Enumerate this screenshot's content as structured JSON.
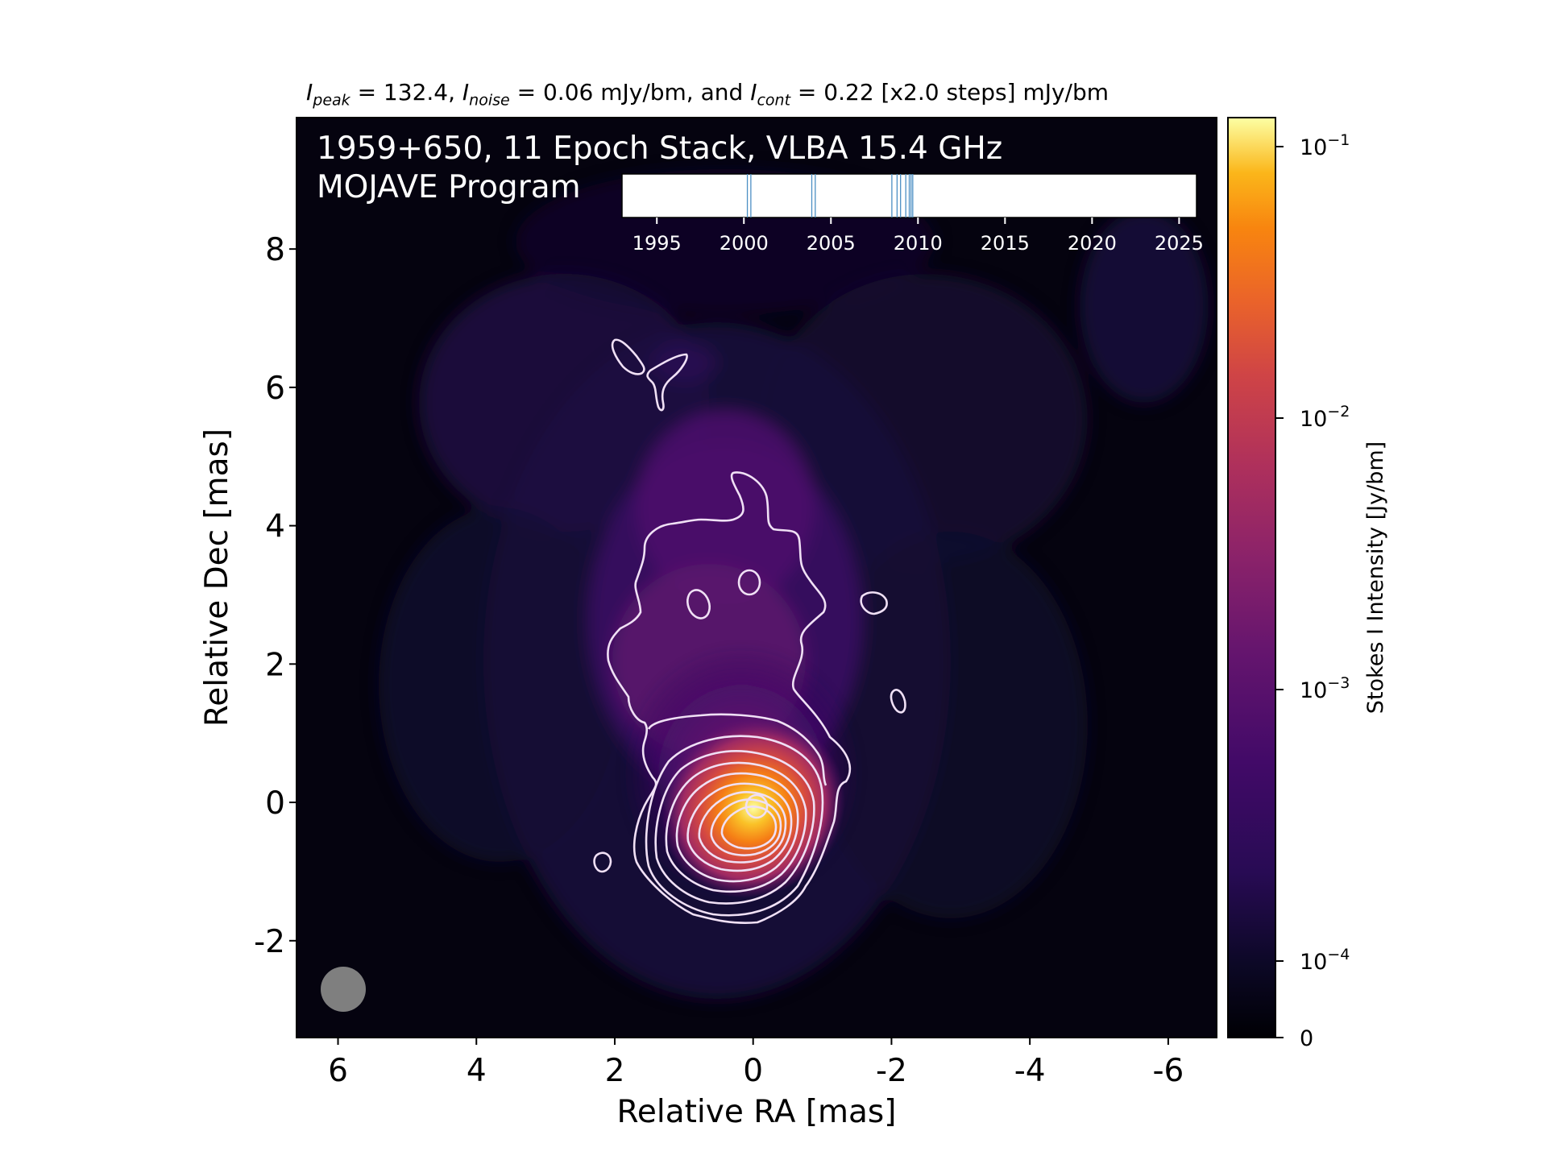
{
  "header": {
    "peak_sym": "I",
    "peak_sub": "peak",
    "peak_text": " = 132.4, ",
    "noise_sym": "I",
    "noise_sub": "noise",
    "noise_text": " = 0.06 mJy/bm, and ",
    "cont_sym": "I",
    "cont_sub": "cont",
    "cont_text": " = 0.22 [x2.0 steps] mJy/bm"
  },
  "overlay": {
    "title_line1": "1959+650, 11 Epoch Stack, VLBA 15.4 GHz",
    "title_line2": "MOJAVE Program"
  },
  "chart_data": [
    {
      "type": "heatmap",
      "title": "",
      "xlabel": "Relative RA [mas]",
      "ylabel": "Relative Dec [mas]",
      "xlim": [
        6.6,
        -6.7
      ],
      "ylim": [
        -3.4,
        9.9
      ],
      "x_ticks": [
        6,
        4,
        2,
        0,
        -2,
        -4,
        -6
      ],
      "y_ticks": [
        -2,
        0,
        2,
        4,
        6,
        8
      ],
      "x_tick_labels": [
        "6",
        "4",
        "2",
        "0",
        "-2",
        "-4",
        "-6"
      ],
      "y_tick_labels": [
        "-2",
        "0",
        "2",
        "4",
        "6",
        "8"
      ],
      "peak_position_mas": [
        0,
        0
      ],
      "beam_center_mas": [
        6.0,
        -2.7
      ],
      "contour_levels_mJy_bm": [
        0.22,
        0.44,
        0.88,
        1.76,
        3.52,
        7.04,
        14.08,
        28.16,
        56.32,
        112.64
      ],
      "colormap": "inferno",
      "background_color": "#000004"
    },
    {
      "type": "colorbar",
      "label": "Stokes I Intensity [Jy/bm]",
      "scale": "symlog",
      "ticks": [
        0,
        0.0001,
        0.001,
        0.01,
        0.1
      ],
      "tick_labels": [
        {
          "base": "0",
          "exp": ""
        },
        {
          "base": "10",
          "exp": "−4"
        },
        {
          "base": "10",
          "exp": "−3"
        },
        {
          "base": "10",
          "exp": "−2"
        },
        {
          "base": "10",
          "exp": "−1"
        }
      ]
    },
    {
      "type": "timeline",
      "xlim": [
        1993,
        2026
      ],
      "x_ticks": [
        1995,
        2000,
        2005,
        2010,
        2015,
        2020,
        2025
      ],
      "x_tick_labels": [
        "1995",
        "2000",
        "2005",
        "2010",
        "2015",
        "2020",
        "2025"
      ],
      "epochs": [
        2000.2,
        2000.4,
        2003.9,
        2004.1,
        2008.5,
        2008.8,
        2009.0,
        2009.3,
        2009.5,
        2009.6,
        2009.7
      ],
      "line_color": "#4c8fc4"
    }
  ]
}
